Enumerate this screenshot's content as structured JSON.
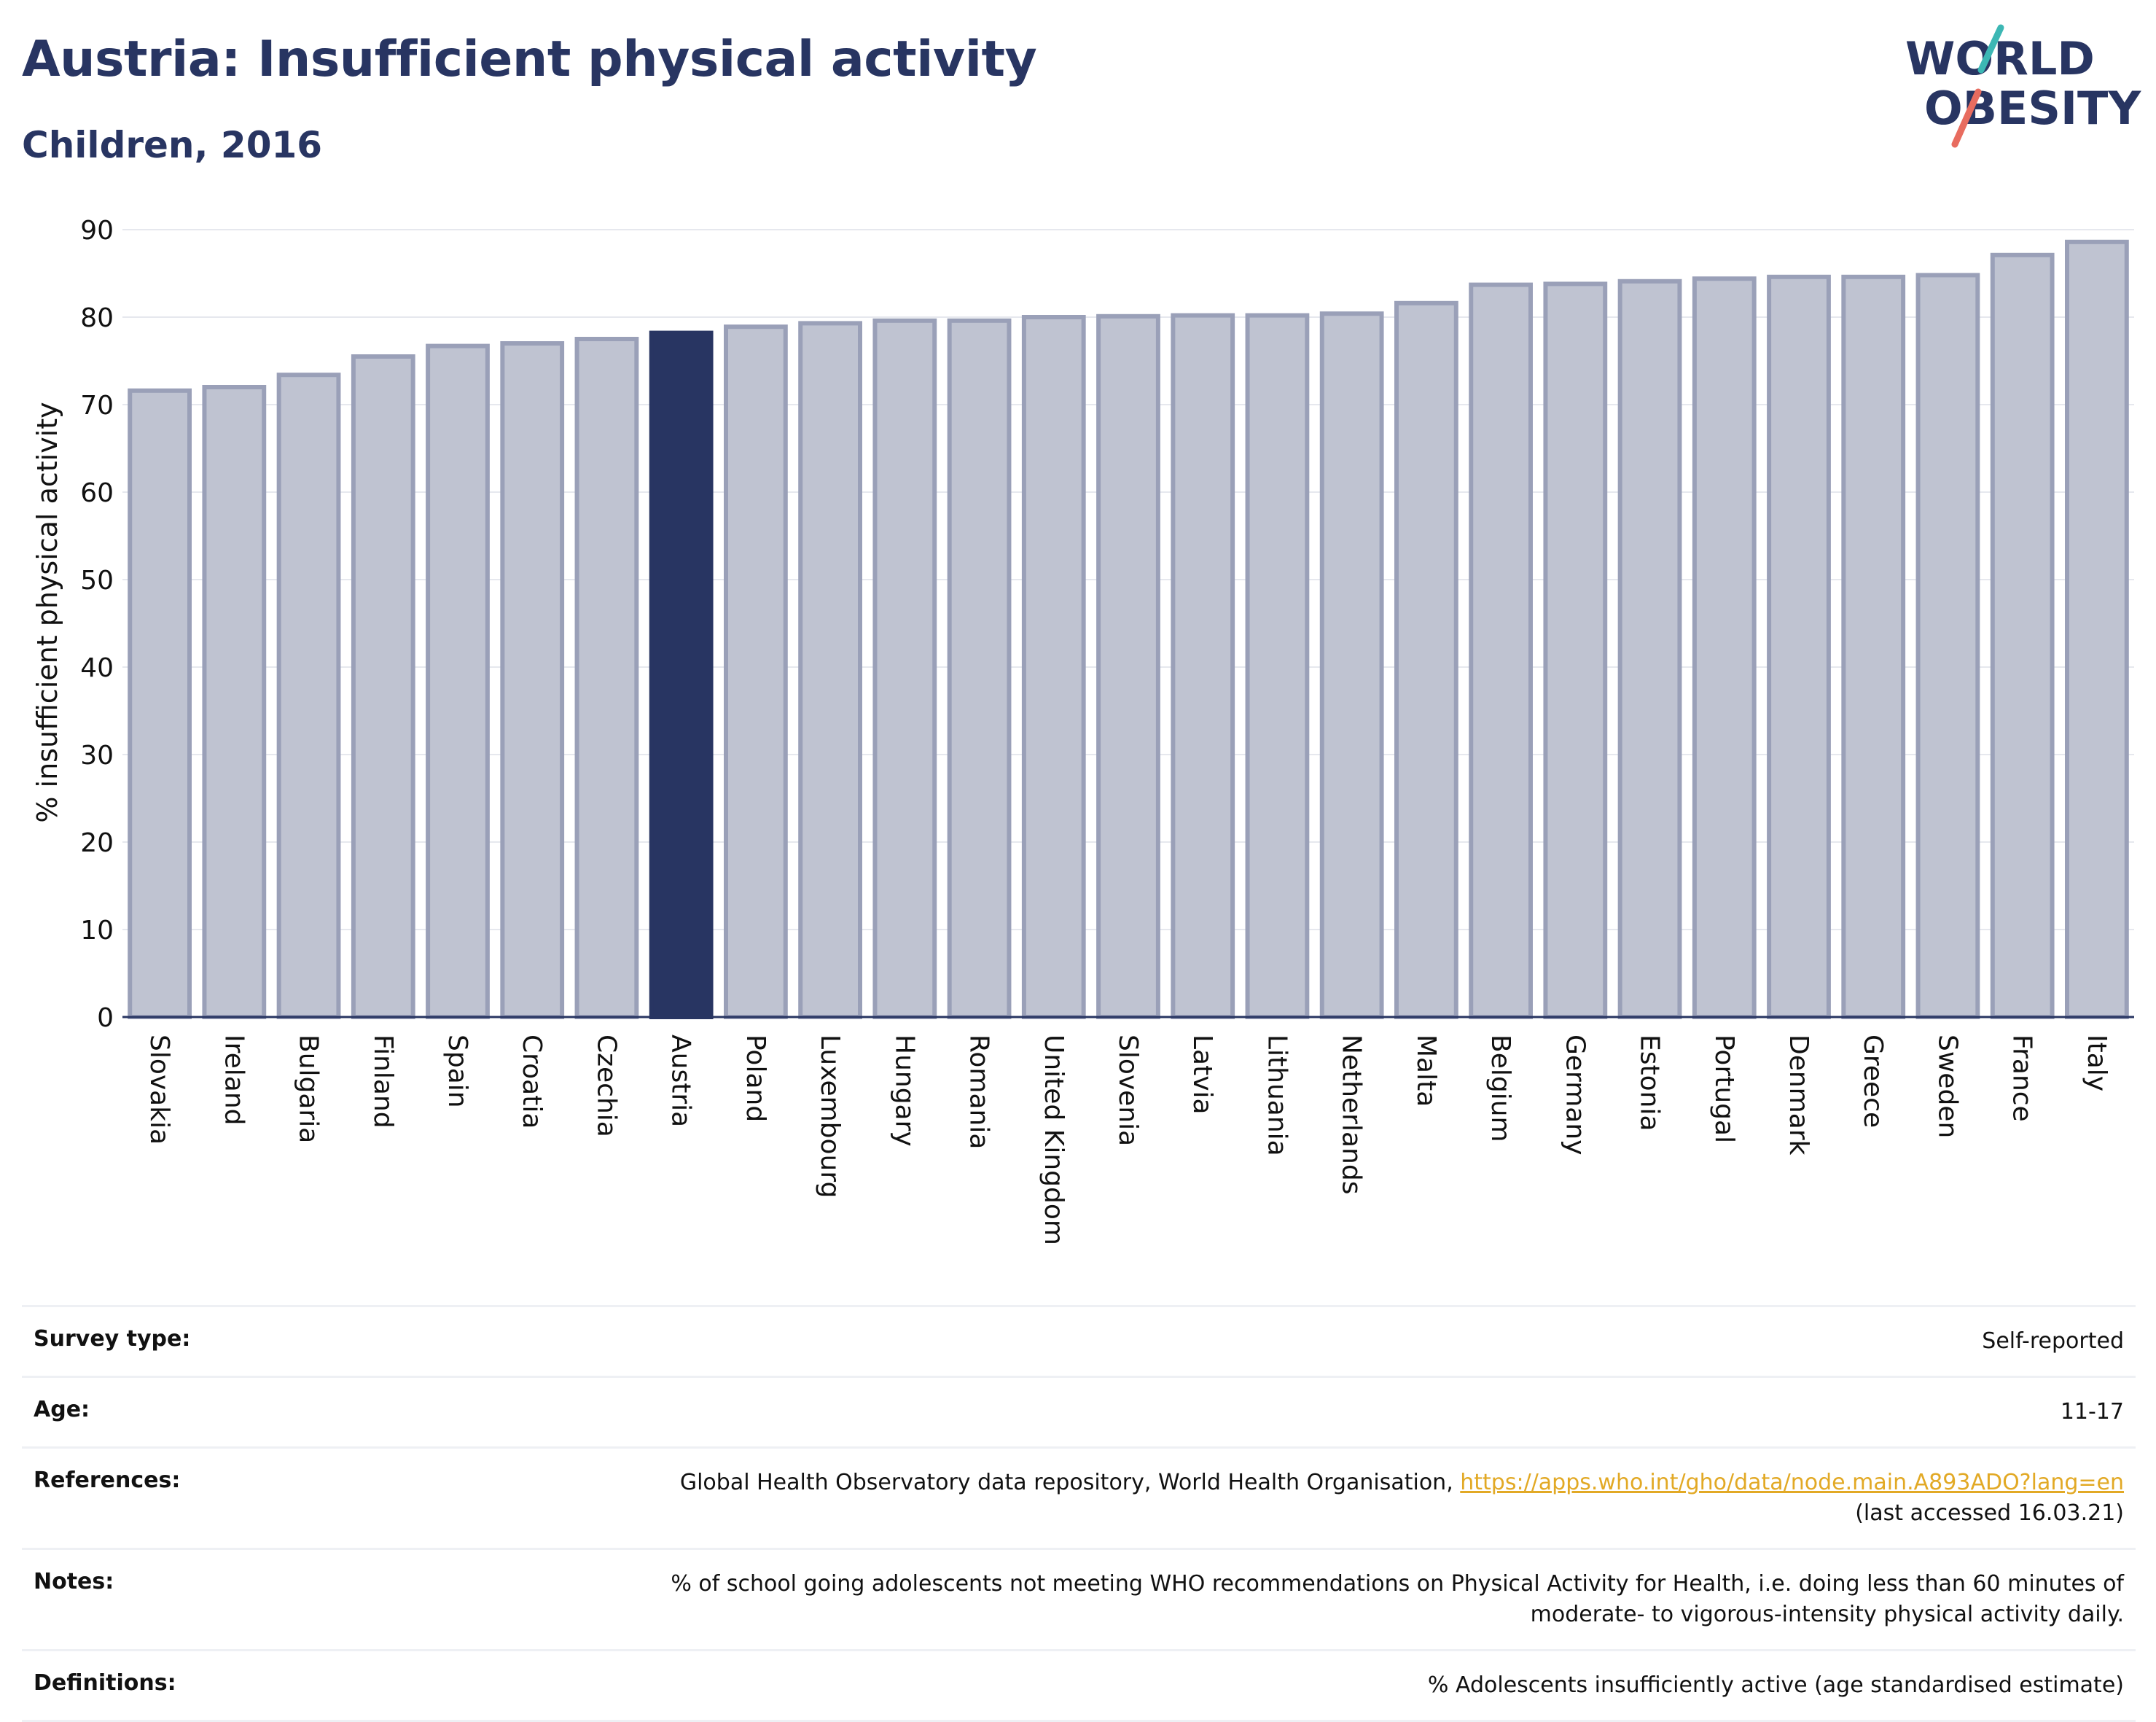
{
  "header": {
    "title": "Austria: Insufficient physical activity",
    "subtitle": "Children, 2016"
  },
  "logo": {
    "line1": "WORLD",
    "line2": "OBESITY",
    "accent_teal": "#3cb7b4",
    "accent_coral": "#e86c5f"
  },
  "colors": {
    "highlight_bar": "#283562",
    "bar_fill": "#bfc3d1",
    "bar_stroke": "#9aa0b8"
  },
  "chart_data": {
    "type": "bar",
    "ylabel": "% insufficient physical activity",
    "xlabel": "",
    "ylim": [
      0,
      90
    ],
    "yticks": [
      0,
      10,
      20,
      30,
      40,
      50,
      60,
      70,
      80,
      90
    ],
    "grid": true,
    "highlight": "Austria",
    "categories": [
      "Slovakia",
      "Ireland",
      "Bulgaria",
      "Finland",
      "Spain",
      "Croatia",
      "Czechia",
      "Austria",
      "Poland",
      "Luxembourg",
      "Hungary",
      "Romania",
      "United Kingdom",
      "Slovenia",
      "Latvia",
      "Lithuania",
      "Netherlands",
      "Malta",
      "Belgium",
      "Germany",
      "Estonia",
      "Portugal",
      "Denmark",
      "Greece",
      "Sweden",
      "France",
      "Italy"
    ],
    "values": [
      71.6,
      72.0,
      73.4,
      75.5,
      76.7,
      77.0,
      77.5,
      78.2,
      78.9,
      79.3,
      79.6,
      79.6,
      80.0,
      80.1,
      80.2,
      80.2,
      80.4,
      81.6,
      83.7,
      83.8,
      84.1,
      84.4,
      84.6,
      84.6,
      84.8,
      87.1,
      88.6
    ]
  },
  "info": {
    "survey_label": "Survey type:",
    "survey_value": "Self-reported",
    "age_label": "Age:",
    "age_value": "11-17",
    "ref_label": "References:",
    "ref_text": "Global Health Observatory data repository, World Health Organisation, ",
    "ref_link": "https://apps.who.int/gho/data/node.main.A893ADO?lang=en",
    "ref_accessed": "(last accessed 16.03.21)",
    "notes_label": "Notes:",
    "notes_line1": "% of school going adolescents not meeting WHO recommendations on Physical Activity for Health, i.e. doing less than 60 minutes of",
    "notes_line2": "moderate- to vigorous-intensity physical activity daily.",
    "def_label": "Definitions:",
    "def_value": "% Adolescents insufficiently active (age standardised estimate)"
  }
}
